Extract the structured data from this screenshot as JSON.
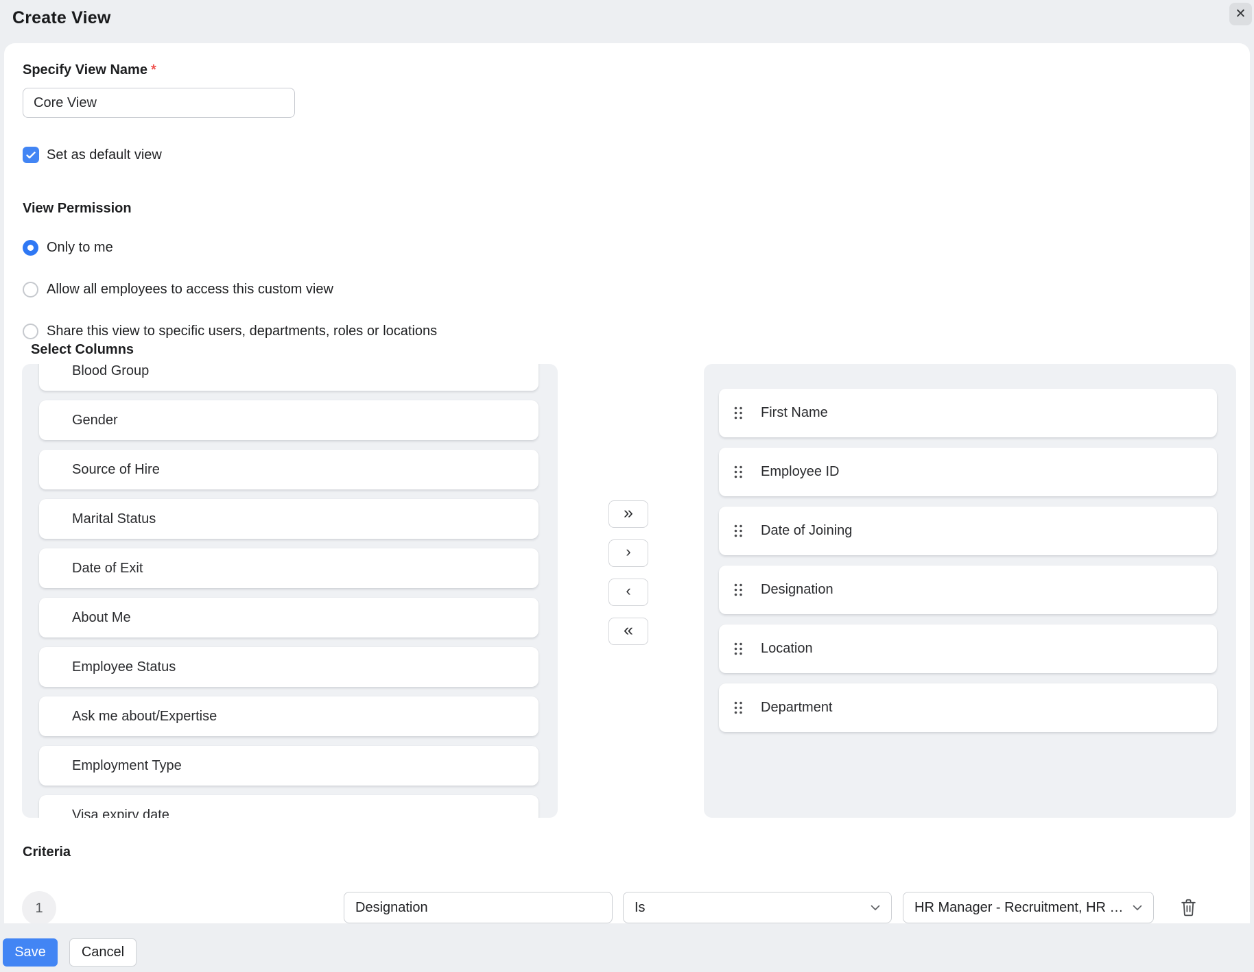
{
  "header": {
    "title": "Create View",
    "close_glyph": "✕"
  },
  "view_name": {
    "label": "Specify View Name",
    "required_mark": "*",
    "value": "Core View"
  },
  "default_view": {
    "label": "Set as default view",
    "checked": true
  },
  "permission": {
    "label": "View Permission",
    "options": [
      {
        "label": "Only to me",
        "selected": true
      },
      {
        "label": "Allow all employees to access this custom view",
        "selected": false
      },
      {
        "label": "Share this view to specific users, departments, roles or locations",
        "selected": false
      }
    ]
  },
  "columns": {
    "label": "Select Columns",
    "available": [
      "Blood Group",
      "Gender",
      "Source of Hire",
      "Marital Status",
      "Date of Exit",
      "About Me",
      "Employee Status",
      "Ask me about/Expertise",
      "Employment Type",
      "Visa expiry date"
    ],
    "selected": [
      "First Name",
      "Employee ID",
      "Date of Joining",
      "Designation",
      "Location",
      "Department"
    ],
    "transfer": [
      {
        "name": "move-all-right-button",
        "glyph": "»",
        "kind": "double"
      },
      {
        "name": "move-right-button",
        "glyph": "›",
        "kind": "single"
      },
      {
        "name": "move-left-button",
        "glyph": "‹",
        "kind": "single"
      },
      {
        "name": "move-all-left-button",
        "glyph": "«",
        "kind": "double"
      }
    ]
  },
  "criteria": {
    "label": "Criteria",
    "rows": [
      {
        "index": "1",
        "field": "Designation",
        "operator": "Is",
        "value": "HR Manager - Recruitment, HR Man..."
      }
    ]
  },
  "footer": {
    "save": "Save",
    "cancel": "Cancel"
  },
  "colors": {
    "accent": "#4285f4",
    "chrome_bg": "#edeff2",
    "list_bg": "#eff1f4",
    "required": "#ef5350"
  }
}
